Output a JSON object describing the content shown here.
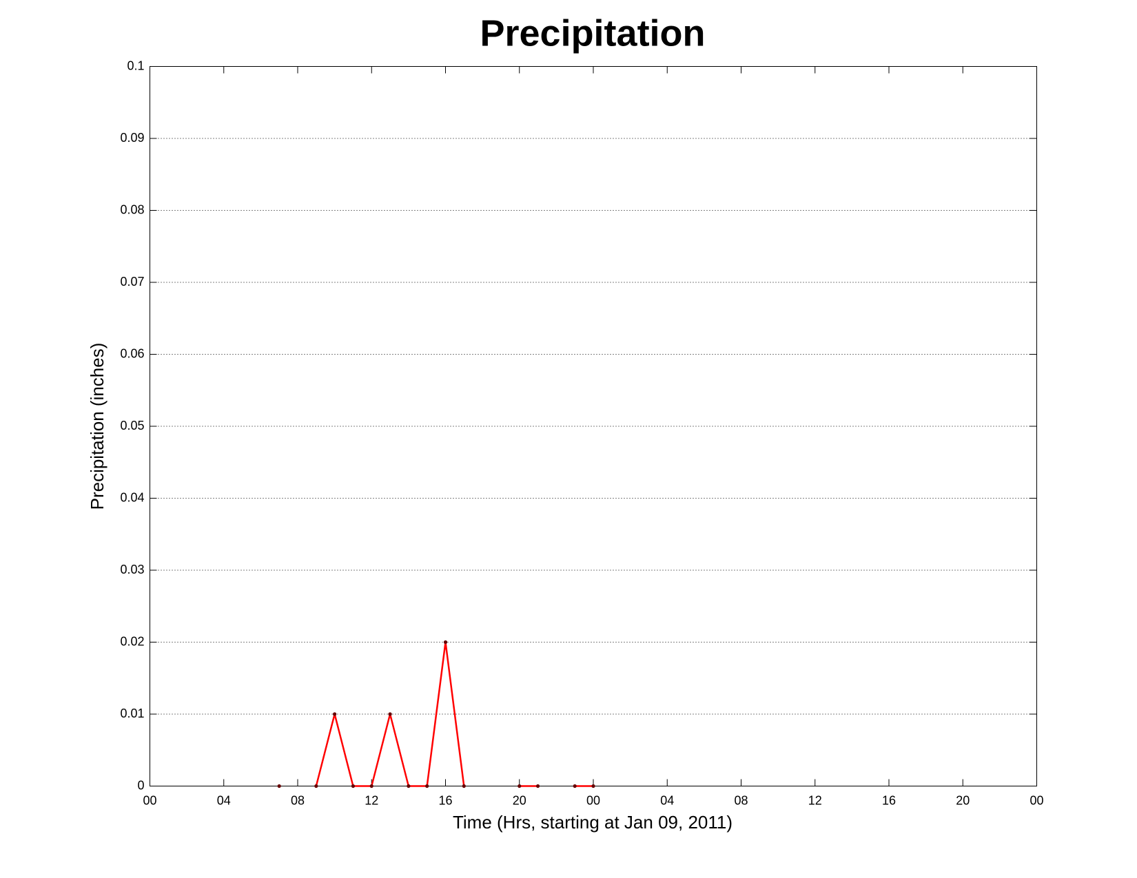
{
  "chart_data": {
    "type": "line",
    "title": "Precipitation",
    "xlabel": "Time (Hrs, starting at Jan 09, 2011)",
    "ylabel": "Precipitation (inches)",
    "x": [
      7,
      8,
      9,
      10,
      11,
      12,
      13,
      14,
      15,
      16,
      17,
      18,
      19,
      20,
      21,
      22,
      23,
      24
    ],
    "values": [
      0,
      null,
      0,
      0.01,
      0,
      0,
      0.01,
      0,
      0,
      0.02,
      0,
      null,
      null,
      0,
      0,
      null,
      0,
      0
    ],
    "color": "#ff0000",
    "marker_color": "#660000",
    "xlim": [
      0,
      48
    ],
    "xticks": [
      {
        "value": 0,
        "label": "00"
      },
      {
        "value": 4,
        "label": "04"
      },
      {
        "value": 8,
        "label": "08"
      },
      {
        "value": 12,
        "label": "12"
      },
      {
        "value": 16,
        "label": "16"
      },
      {
        "value": 20,
        "label": "20"
      },
      {
        "value": 24,
        "label": "00"
      },
      {
        "value": 28,
        "label": "04"
      },
      {
        "value": 32,
        "label": "08"
      },
      {
        "value": 36,
        "label": "12"
      },
      {
        "value": 40,
        "label": "16"
      },
      {
        "value": 44,
        "label": "20"
      },
      {
        "value": 48,
        "label": "00"
      }
    ],
    "ylim": [
      0,
      0.1
    ],
    "yticks": [
      0,
      0.01,
      0.02,
      0.03,
      0.04,
      0.05,
      0.06,
      0.07,
      0.08,
      0.09,
      0.1
    ],
    "grid": true
  }
}
